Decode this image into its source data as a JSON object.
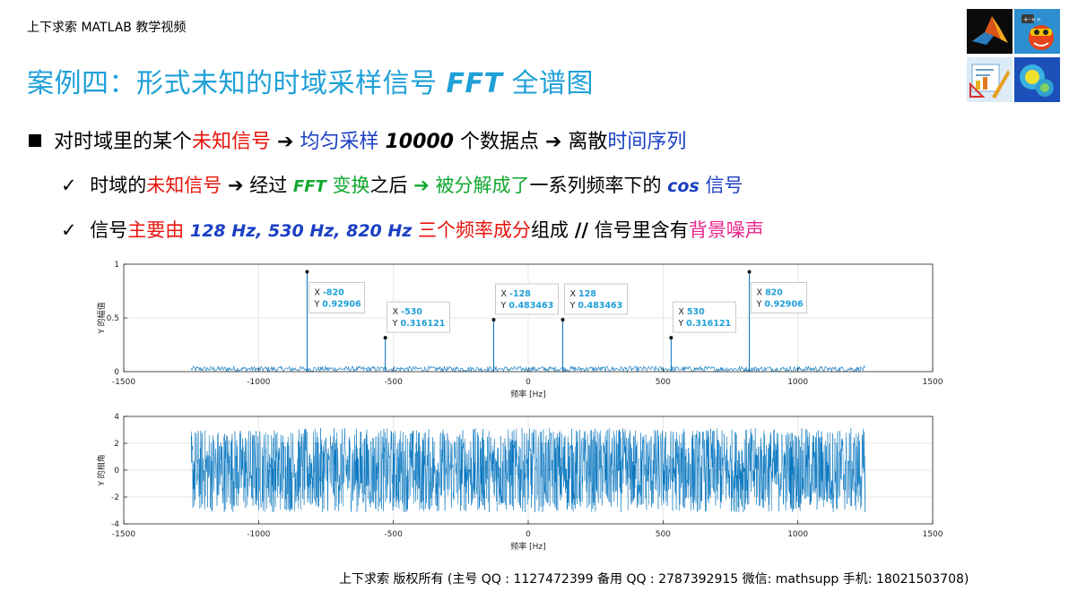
{
  "header": {
    "course_label": "上下求索 MATLAB 教学视频"
  },
  "title": {
    "prefix": "案例四：形式未知的时域采样信号 ",
    "fft": "FFT",
    "suffix": " 全谱图"
  },
  "bullets": {
    "main": {
      "p1": "对时域里的某个",
      "p2": "未知信号",
      "p3": " ➔  ",
      "p4": "均匀采样 ",
      "p5": "10000",
      "p6": " 个数据点",
      "p7": " ➔  离散",
      "p8": "时间序列"
    },
    "sub1": {
      "p1": "时域的",
      "p2": "未知信号",
      "p3": " ➔  经过 ",
      "p4": "FFT",
      "p5": " 变换",
      "p6": "之后 ",
      "p7": "➔  被分解成了",
      "p8": "一系列频率下的 ",
      "p9": "cos",
      "p10": " 信号"
    },
    "sub2": {
      "p1": "信号",
      "p2": "主要由 ",
      "p3": "128 Hz, 530 Hz, 820 Hz",
      "p4": " 三个频率成分",
      "p5": "组成 ",
      "p6": "//",
      "p7": " 信号里含有",
      "p8": "背景噪声"
    },
    "check": "✓"
  },
  "footer": {
    "text": "上下求索  版权所有  (主号 QQ : 1127472399    备用 QQ : 2787392915    微信: mathsupp    手机: 18021503708)"
  },
  "colors": {
    "title": "#1fa0d8",
    "plot_line": "#0072bd",
    "datatip_text": "#1fa0d8"
  },
  "icons": [
    "matlab-logo-icon",
    "game-character-icon",
    "chart-ruler-icon",
    "heatmap-icon"
  ],
  "chart_data": [
    {
      "type": "line",
      "title": "",
      "xlabel": "频率 [Hz]",
      "ylabel": "Y 的幅值",
      "xlim": [
        -1500,
        1500
      ],
      "ylim": [
        0,
        1
      ],
      "xticks": [
        -1500,
        -1000,
        -500,
        0,
        500,
        1000,
        1500
      ],
      "yticks": [
        0,
        0.5,
        1
      ],
      "grid": true,
      "data_range_x": [
        -1250,
        1250
      ],
      "noise_floor_max": 0.05,
      "peaks": [
        {
          "x": -820,
          "y": 0.92906
        },
        {
          "x": -530,
          "y": 0.316121
        },
        {
          "x": -128,
          "y": 0.483463
        },
        {
          "x": 128,
          "y": 0.483463
        },
        {
          "x": 530,
          "y": 0.316121
        },
        {
          "x": 820,
          "y": 0.92906
        }
      ],
      "datatips": [
        {
          "x_label": "X",
          "x_value": "-820",
          "y_label": "Y",
          "y_value": "0.92906"
        },
        {
          "x_label": "X",
          "x_value": "-530",
          "y_label": "Y",
          "y_value": "0.316121"
        },
        {
          "x_label": "X",
          "x_value": "-128",
          "y_label": "Y",
          "y_value": "0.483463"
        },
        {
          "x_label": "X",
          "x_value": "128",
          "y_label": "Y",
          "y_value": "0.483463"
        },
        {
          "x_label": "X",
          "x_value": "530",
          "y_label": "Y",
          "y_value": "0.316121"
        },
        {
          "x_label": "X",
          "x_value": "820",
          "y_label": "Y",
          "y_value": "0.92906"
        }
      ]
    },
    {
      "type": "line",
      "title": "",
      "xlabel": "频率 [Hz]",
      "ylabel": "Y 的相角",
      "xlim": [
        -1500,
        1500
      ],
      "ylim": [
        -4,
        4
      ],
      "xticks": [
        -1500,
        -1000,
        -500,
        0,
        500,
        1000,
        1500
      ],
      "yticks": [
        -4,
        -2,
        0,
        2,
        4
      ],
      "grid": true,
      "data_range_x": [
        -1250,
        1250
      ],
      "phase_range": [
        -3.14159,
        3.14159
      ]
    }
  ]
}
